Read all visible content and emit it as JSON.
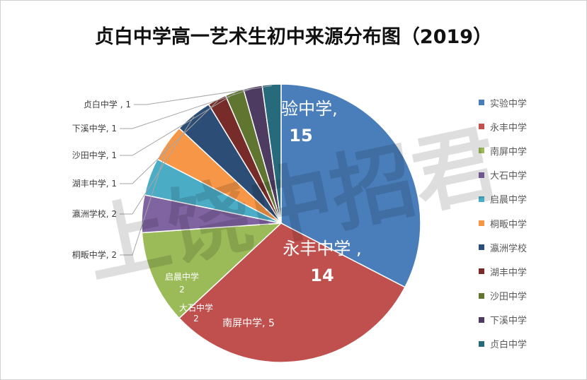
{
  "chart_data": {
    "type": "pie",
    "title": "贞白中学高一艺术生初中来源分布图（2019）",
    "categories": [
      "实验中学",
      "永丰中学",
      "南屏中学",
      "大石中学",
      "启晨中学",
      "桐畈中学",
      "瀛洲学校",
      "湖丰中学",
      "沙田中学",
      "下溪中学",
      "贞白中学"
    ],
    "values": [
      15,
      14,
      5,
      2,
      2,
      2,
      2,
      1,
      1,
      1,
      1
    ],
    "colors": [
      "#4a7ebb",
      "#c0504d",
      "#9bbb59",
      "#8064a2",
      "#4bacc6",
      "#f79646",
      "#2c4d75",
      "#772c2a",
      "#5f7530",
      "#4d3b62",
      "#276a7c"
    ],
    "data_labels": [
      {
        "name": "实验中学",
        "sep": ",",
        "value": "15"
      },
      {
        "name": "永丰中学",
        "sep": " ,",
        "value": "14"
      },
      {
        "name": "南屏中学",
        "sep": ", ",
        "value": "5"
      },
      {
        "name": "大石中学",
        "sep": "",
        "value": "2"
      },
      {
        "name": "启晨中学",
        "sep": "",
        "value": "2"
      },
      {
        "name": "桐畈中学",
        "sep": ", ",
        "value": "2"
      },
      {
        "name": "瀛洲学校",
        "sep": ", ",
        "value": "2"
      },
      {
        "name": "湖丰中学",
        "sep": ", ",
        "value": "1"
      },
      {
        "name": "沙田中学",
        "sep": ", ",
        "value": "1"
      },
      {
        "name": "下溪中学",
        "sep": ", ",
        "value": "1"
      },
      {
        "name": "贞白中学",
        "sep": " , ",
        "value": "1"
      }
    ],
    "legend_position": "right"
  },
  "watermark": "上饶中招君"
}
